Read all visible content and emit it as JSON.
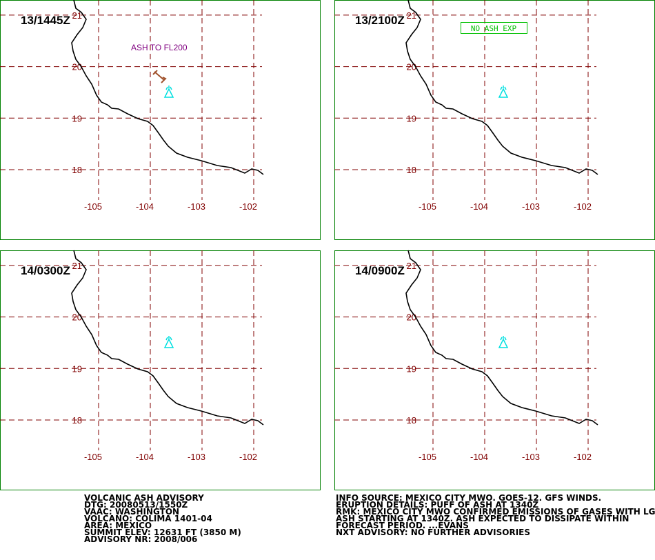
{
  "panels": [
    {
      "time": "13/1445Z",
      "annotation": "ASH TO FL200"
    },
    {
      "time": "13/2100Z",
      "annotation": "NO ASH EXP"
    },
    {
      "time": "14/0300Z"
    },
    {
      "time": "14/0900Z"
    }
  ],
  "grid": {
    "lat": [
      21,
      20,
      19,
      18
    ],
    "lon": [
      -105,
      -104,
      -103,
      -102
    ]
  },
  "advisory_left": [
    "VOLCANIC ASH ADVISORY",
    "DTG: 20080513/1550Z",
    "VAAC: WASHINGTON",
    "VOLCANO: COLIMA 1401-04",
    "AREA: MEXICO",
    "SUMMIT ELEV: 12631 FT (3850 M)",
    "ADVISORY NR: 2008/006"
  ],
  "advisory_right": [
    "INFO SOURCE: MEXICO CITY MWO. GOES-12. GFS WINDS.",
    "ERUPTION DETAILS: PUFF OF ASH AT 1340Z",
    "RMK: MEXICO CITY MWO CONFIRMED EMISSIONS OF GASES WITH LGT",
    "ASH STARTING AT 1340Z. ASH EXPECTED TO DISSIPATE WITHIN",
    "FORECAST PERIOD. ...EVANS",
    "NXT ADVISORY: NO FURTHER ADVISORIES"
  ]
}
